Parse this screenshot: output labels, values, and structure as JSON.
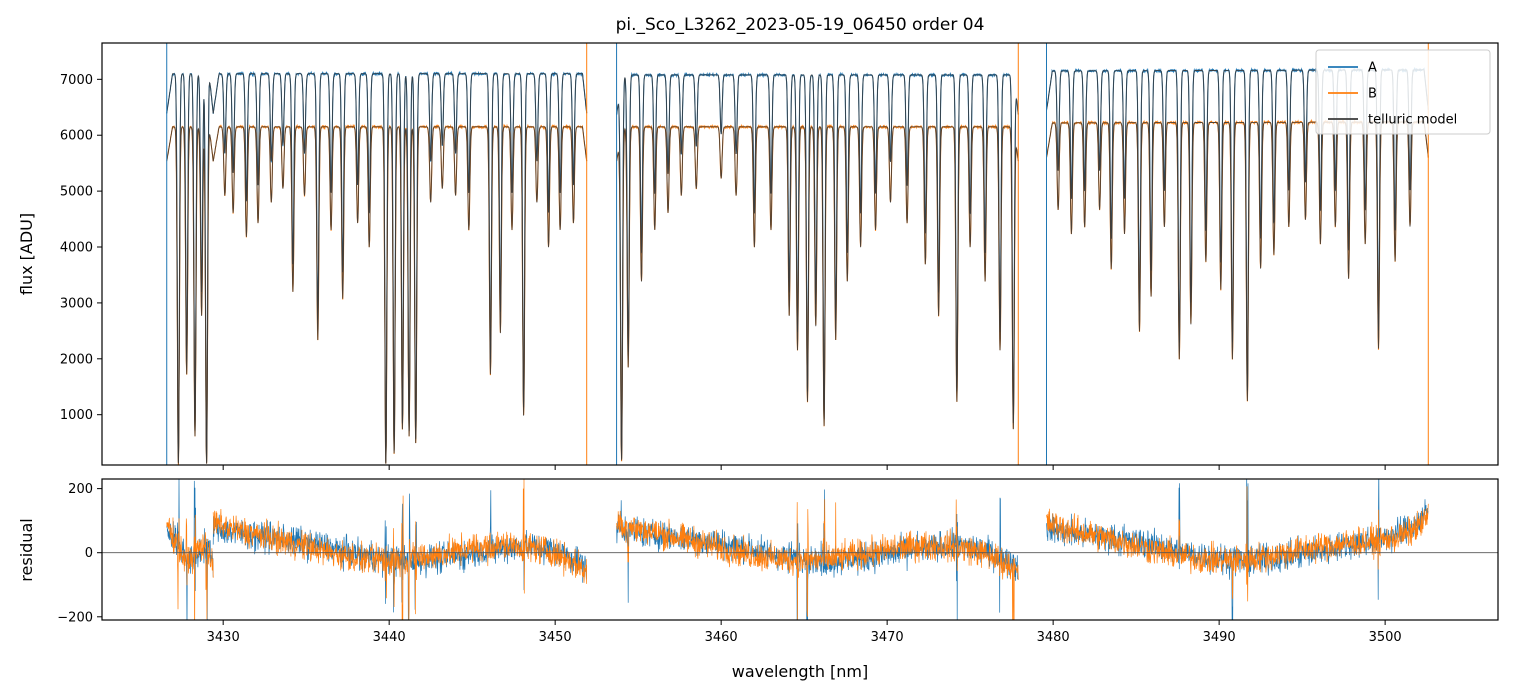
{
  "chart_data": [
    {
      "panel": "flux",
      "type": "line",
      "title": "pi._Sco_L3262_2023-05-19_06450  order 04",
      "xlabel": "",
      "ylabel": "flux [ADU]",
      "xlim": [
        3422.7,
        3506.8
      ],
      "ylim": [
        100,
        7650
      ],
      "x_ticks": [
        3430,
        3440,
        3450,
        3460,
        3470,
        3480,
        3490,
        3500
      ],
      "y_ticks": [
        1000,
        2000,
        3000,
        4000,
        5000,
        6000,
        7000
      ],
      "x_tick_labels_visible": false,
      "grid": false,
      "legend": {
        "placement": "top-right",
        "entries": [
          "A",
          "B",
          "telluric model"
        ]
      },
      "segments": [
        [
          3426.6,
          3429.4
        ],
        [
          3429.4,
          3451.9
        ],
        [
          3453.7,
          3477.9
        ],
        [
          3479.6,
          3502.6
        ]
      ],
      "series": [
        {
          "name": "A",
          "color": "#1f77b4",
          "continuum": [
            7100,
            7100,
            7080,
            7150
          ],
          "continuum_slope": [
            0,
            0,
            0,
            20
          ]
        },
        {
          "name": "B",
          "color": "#ff7f0e",
          "continuum": [
            6150,
            6150,
            6150,
            6220
          ],
          "continuum_slope": [
            0,
            0,
            0,
            18
          ]
        },
        {
          "name": "telluric model",
          "color": "#3a3a3a"
        }
      ],
      "absorption_lines": [
        {
          "x": 3427.3,
          "depth": 0.98
        },
        {
          "x": 3427.8,
          "depth": 0.72
        },
        {
          "x": 3428.3,
          "depth": 0.9
        },
        {
          "x": 3428.7,
          "depth": 0.55
        },
        {
          "x": 3429.0,
          "depth": 0.98
        },
        {
          "x": 3430.1,
          "depth": 0.2
        },
        {
          "x": 3430.6,
          "depth": 0.25
        },
        {
          "x": 3431.4,
          "depth": 0.32
        },
        {
          "x": 3432.1,
          "depth": 0.28
        },
        {
          "x": 3432.9,
          "depth": 0.22
        },
        {
          "x": 3433.6,
          "depth": 0.18
        },
        {
          "x": 3434.2,
          "depth": 0.48
        },
        {
          "x": 3434.9,
          "depth": 0.2
        },
        {
          "x": 3435.7,
          "depth": 0.62
        },
        {
          "x": 3436.5,
          "depth": 0.3
        },
        {
          "x": 3437.2,
          "depth": 0.5
        },
        {
          "x": 3438.1,
          "depth": 0.28
        },
        {
          "x": 3438.8,
          "depth": 0.35
        },
        {
          "x": 3439.8,
          "depth": 0.98
        },
        {
          "x": 3440.3,
          "depth": 0.95
        },
        {
          "x": 3440.8,
          "depth": 0.88
        },
        {
          "x": 3441.2,
          "depth": 0.9
        },
        {
          "x": 3441.6,
          "depth": 0.92
        },
        {
          "x": 3442.5,
          "depth": 0.22
        },
        {
          "x": 3443.2,
          "depth": 0.18
        },
        {
          "x": 3444.0,
          "depth": 0.2
        },
        {
          "x": 3444.8,
          "depth": 0.3
        },
        {
          "x": 3446.1,
          "depth": 0.72
        },
        {
          "x": 3446.7,
          "depth": 0.6
        },
        {
          "x": 3447.4,
          "depth": 0.3
        },
        {
          "x": 3448.1,
          "depth": 0.84
        },
        {
          "x": 3448.9,
          "depth": 0.22
        },
        {
          "x": 3449.6,
          "depth": 0.35
        },
        {
          "x": 3450.3,
          "depth": 0.3
        },
        {
          "x": 3451.1,
          "depth": 0.28
        },
        {
          "x": 3454.0,
          "depth": 0.97
        },
        {
          "x": 3454.4,
          "depth": 0.7
        },
        {
          "x": 3455.2,
          "depth": 0.45
        },
        {
          "x": 3456.0,
          "depth": 0.3
        },
        {
          "x": 3456.8,
          "depth": 0.25
        },
        {
          "x": 3457.6,
          "depth": 0.2
        },
        {
          "x": 3458.5,
          "depth": 0.18
        },
        {
          "x": 3460.0,
          "depth": 0.15
        },
        {
          "x": 3460.9,
          "depth": 0.2
        },
        {
          "x": 3462.0,
          "depth": 0.35
        },
        {
          "x": 3463.0,
          "depth": 0.3
        },
        {
          "x": 3464.1,
          "depth": 0.55
        },
        {
          "x": 3464.6,
          "depth": 0.65
        },
        {
          "x": 3465.2,
          "depth": 0.8
        },
        {
          "x": 3465.7,
          "depth": 0.58
        },
        {
          "x": 3466.2,
          "depth": 0.87
        },
        {
          "x": 3466.9,
          "depth": 0.62
        },
        {
          "x": 3467.6,
          "depth": 0.45
        },
        {
          "x": 3468.4,
          "depth": 0.35
        },
        {
          "x": 3469.3,
          "depth": 0.3
        },
        {
          "x": 3470.2,
          "depth": 0.22
        },
        {
          "x": 3471.2,
          "depth": 0.28
        },
        {
          "x": 3472.3,
          "depth": 0.4
        },
        {
          "x": 3473.1,
          "depth": 0.55
        },
        {
          "x": 3474.2,
          "depth": 0.8
        },
        {
          "x": 3475.0,
          "depth": 0.35
        },
        {
          "x": 3475.9,
          "depth": 0.45
        },
        {
          "x": 3476.8,
          "depth": 0.65
        },
        {
          "x": 3477.6,
          "depth": 0.88
        },
        {
          "x": 3480.3,
          "depth": 0.25
        },
        {
          "x": 3481.1,
          "depth": 0.32
        },
        {
          "x": 3481.9,
          "depth": 0.3
        },
        {
          "x": 3482.8,
          "depth": 0.25
        },
        {
          "x": 3483.5,
          "depth": 0.42
        },
        {
          "x": 3484.3,
          "depth": 0.32
        },
        {
          "x": 3485.2,
          "depth": 0.6
        },
        {
          "x": 3485.9,
          "depth": 0.5
        },
        {
          "x": 3486.7,
          "depth": 0.3
        },
        {
          "x": 3487.6,
          "depth": 0.68
        },
        {
          "x": 3488.3,
          "depth": 0.58
        },
        {
          "x": 3489.2,
          "depth": 0.4
        },
        {
          "x": 3490.1,
          "depth": 0.48
        },
        {
          "x": 3490.8,
          "depth": 0.68
        },
        {
          "x": 3491.7,
          "depth": 0.8
        },
        {
          "x": 3492.5,
          "depth": 0.42
        },
        {
          "x": 3493.3,
          "depth": 0.38
        },
        {
          "x": 3494.2,
          "depth": 0.3
        },
        {
          "x": 3495.2,
          "depth": 0.28
        },
        {
          "x": 3496.1,
          "depth": 0.35
        },
        {
          "x": 3497.0,
          "depth": 0.3
        },
        {
          "x": 3497.8,
          "depth": 0.45
        },
        {
          "x": 3498.8,
          "depth": 0.35
        },
        {
          "x": 3499.6,
          "depth": 0.65
        },
        {
          "x": 3500.6,
          "depth": 0.4
        },
        {
          "x": 3501.5,
          "depth": 0.3
        }
      ]
    },
    {
      "panel": "residual",
      "type": "line",
      "xlabel": "wavelength [nm]",
      "ylabel": "residual",
      "xlim": [
        3422.7,
        3506.8
      ],
      "ylim": [
        -210,
        230
      ],
      "x_ticks": [
        3430,
        3440,
        3450,
        3460,
        3470,
        3480,
        3490,
        3500
      ],
      "y_ticks": [
        -200,
        0,
        200
      ],
      "zero_line": true,
      "series": [
        {
          "name": "A",
          "color": "#1f77b4"
        },
        {
          "name": "B",
          "color": "#ff7f0e"
        }
      ]
    }
  ]
}
